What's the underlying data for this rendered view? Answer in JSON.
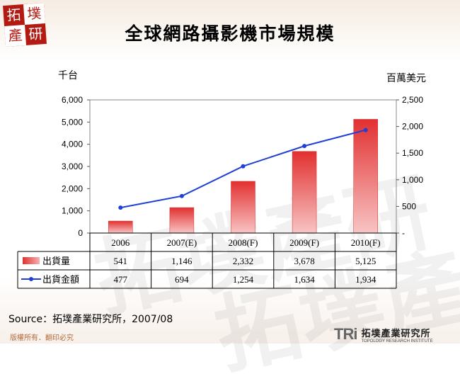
{
  "title": "全球網路攝影機市場規模",
  "logo": {
    "chars": [
      "拓",
      "墣",
      "產",
      "研"
    ]
  },
  "left_unit": "千台",
  "right_unit": "百萬美元",
  "source": "Source：拓墣產業研究所，2007/08",
  "footer": {
    "copyright": "版權所有．翻印必究",
    "brand_mark": "TRi",
    "brand_name": "拓墣產業研究所",
    "brand_en": "TOPOLOGY RESEARCH INSTITUTE"
  },
  "colors": {
    "bar": "#e03a3a",
    "line": "#1f3fd6",
    "title": "#000000"
  },
  "chart_data": {
    "type": "bar",
    "categories": [
      "2006",
      "2007(E)",
      "2008(F)",
      "2009(F)",
      "2010(F)"
    ],
    "series": [
      {
        "name": "出貨量",
        "type": "bar",
        "axis": "left",
        "values": [
          541,
          1146,
          2332,
          3678,
          5125
        ],
        "labels": [
          "541",
          "1,146",
          "2,332",
          "3,678",
          "5,125"
        ]
      },
      {
        "name": "出貨金額",
        "type": "line",
        "axis": "right",
        "values": [
          477,
          694,
          1254,
          1634,
          1934
        ],
        "labels": [
          "477",
          "694",
          "1,254",
          "1,634",
          "1,934"
        ]
      }
    ],
    "ylabel": "千台",
    "ylabel_right": "百萬美元",
    "ylim": [
      0,
      6000
    ],
    "ylim_right": [
      0,
      2500
    ],
    "yticks": [
      "6,000",
      "5,000",
      "4,000",
      "3,000",
      "2,000",
      "1,000",
      "0"
    ],
    "yticks_right": [
      "2,500",
      "2,000",
      "1,500",
      "1,000",
      "500",
      "-"
    ],
    "legend": "data-table"
  }
}
